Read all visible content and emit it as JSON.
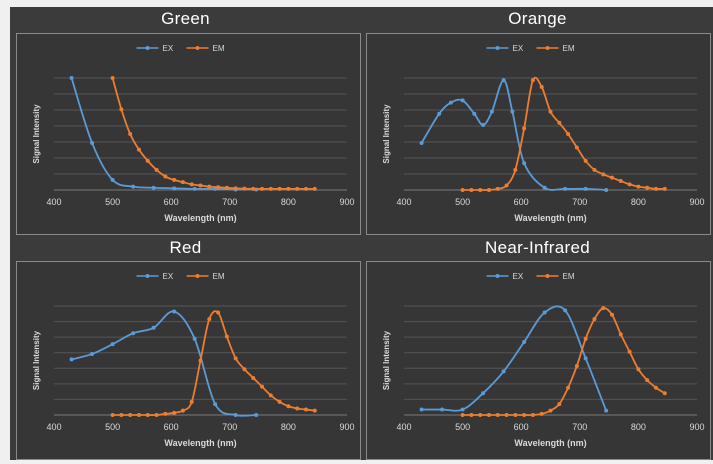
{
  "colors": {
    "ex": "#5b9bd5",
    "em": "#ed7d31",
    "background": "#3b3b3b",
    "grid": "#555555",
    "text": "#d9d9d9"
  },
  "chart_data": [
    {
      "type": "line",
      "title": "Green",
      "xlabel": "Wavelength (nm)",
      "ylabel": "Signal Intensity",
      "xlim": [
        400,
        900
      ],
      "ylim": [
        0,
        100
      ],
      "xticks": [
        "400",
        "500",
        "600",
        "700",
        "800",
        "900"
      ],
      "grid": true,
      "legend": "top-center",
      "series": [
        {
          "name": "EX",
          "x": [
            430,
            465,
            500,
            535,
            570,
            605,
            640,
            675,
            710,
            745
          ],
          "y": [
            100,
            42,
            9,
            3,
            2,
            1.5,
            1,
            1,
            0.5,
            0.5
          ]
        },
        {
          "name": "EM",
          "x": [
            500,
            515,
            530,
            545,
            560,
            575,
            590,
            605,
            620,
            635,
            650,
            665,
            680,
            695,
            710,
            725,
            740,
            755,
            770,
            785,
            800,
            815,
            830,
            845
          ],
          "y": [
            100,
            72,
            50,
            36,
            26,
            18,
            12,
            9,
            7,
            5,
            4,
            3,
            2.5,
            2,
            1.5,
            1.2,
            1,
            1,
            1,
            1,
            1,
            1,
            1,
            1
          ]
        }
      ]
    },
    {
      "type": "line",
      "title": "Orange",
      "xlabel": "Wavelength (nm)",
      "ylabel": "Signal Intensity",
      "xlim": [
        400,
        900
      ],
      "ylim": [
        0,
        100
      ],
      "xticks": [
        "400",
        "500",
        "600",
        "700",
        "800",
        "900"
      ],
      "grid": true,
      "legend": "top-center",
      "series": [
        {
          "name": "EX",
          "x": [
            430,
            460,
            480,
            500,
            520,
            535,
            550,
            570,
            585,
            605,
            640,
            675,
            710,
            745
          ],
          "y": [
            42,
            68,
            78,
            80,
            68,
            58,
            70,
            98,
            70,
            24,
            2,
            1,
            1,
            0
          ]
        },
        {
          "name": "EM",
          "x": [
            500,
            515,
            530,
            545,
            560,
            575,
            590,
            605,
            620,
            635,
            650,
            665,
            680,
            695,
            710,
            725,
            740,
            755,
            770,
            785,
            800,
            815,
            830,
            845
          ],
          "y": [
            0,
            0,
            0,
            0,
            1,
            4,
            18,
            55,
            98,
            92,
            70,
            60,
            50,
            38,
            26,
            18,
            14,
            11,
            8,
            5,
            3,
            2,
            1,
            1
          ]
        }
      ]
    },
    {
      "type": "line",
      "title": "Red",
      "xlabel": "Wavelength (nm)",
      "ylabel": "Signal Intensity",
      "xlim": [
        400,
        900
      ],
      "ylim": [
        0,
        100
      ],
      "xticks": [
        "400",
        "500",
        "600",
        "700",
        "800",
        "900"
      ],
      "grid": true,
      "legend": "top-center",
      "series": [
        {
          "name": "EX",
          "x": [
            430,
            465,
            500,
            535,
            570,
            605,
            640,
            675,
            710,
            745
          ],
          "y": [
            51,
            56,
            65,
            75,
            80,
            95,
            70,
            10,
            0,
            0
          ]
        },
        {
          "name": "EM",
          "x": [
            500,
            515,
            530,
            545,
            560,
            575,
            590,
            605,
            620,
            635,
            650,
            665,
            680,
            695,
            710,
            725,
            740,
            755,
            770,
            785,
            800,
            815,
            830,
            845
          ],
          "y": [
            0,
            0,
            0,
            0,
            0,
            0,
            1,
            2,
            4,
            12,
            50,
            88,
            94,
            72,
            52,
            42,
            34,
            26,
            18,
            12,
            8,
            6,
            5,
            4
          ]
        }
      ]
    },
    {
      "type": "line",
      "title": "Near-Infrared",
      "xlabel": "Wavelength (nm)",
      "ylabel": "Signal Intensity",
      "xlim": [
        400,
        900
      ],
      "ylim": [
        0,
        100
      ],
      "xticks": [
        "400",
        "500",
        "600",
        "700",
        "800",
        "900"
      ],
      "grid": true,
      "legend": "top-center",
      "series": [
        {
          "name": "EX",
          "x": [
            430,
            465,
            500,
            535,
            570,
            605,
            640,
            675,
            710,
            745
          ],
          "y": [
            5,
            5,
            5,
            20,
            40,
            67,
            94,
            96,
            52,
            4
          ]
        },
        {
          "name": "EM",
          "x": [
            500,
            515,
            530,
            545,
            560,
            575,
            590,
            605,
            620,
            635,
            650,
            665,
            680,
            695,
            710,
            725,
            740,
            755,
            770,
            785,
            800,
            815,
            830,
            845
          ],
          "y": [
            0,
            0,
            0,
            0,
            0,
            0,
            0,
            0,
            0,
            1,
            4,
            10,
            25,
            45,
            70,
            88,
            98,
            92,
            74,
            58,
            42,
            32,
            25,
            20
          ]
        }
      ]
    }
  ]
}
